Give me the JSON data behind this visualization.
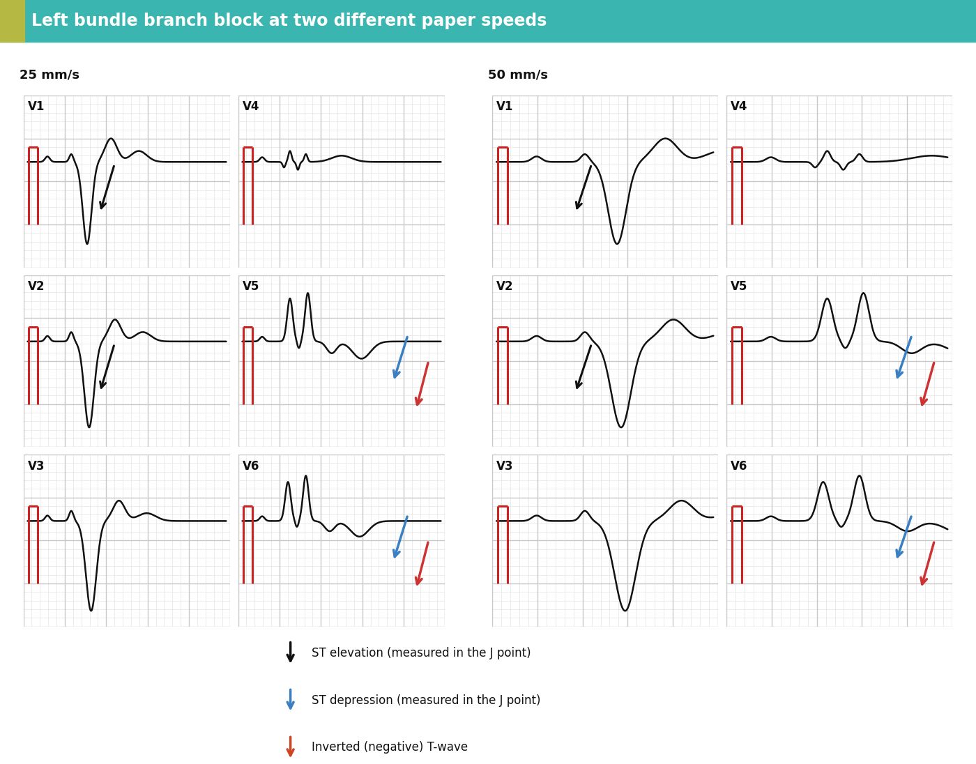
{
  "title": "Left bundle branch block at two different paper speeds",
  "title_bg": "#3ab5b0",
  "title_accent": "#b5b842",
  "title_text_color": "#ffffff",
  "bg_color": "#ffffff",
  "grid_major_color": "#c8c8c8",
  "grid_minor_color": "#e4e4e4",
  "ecg_color": "#111111",
  "red_cal_color": "#cc2222",
  "label_25": "25 mm/s",
  "label_50": "50 mm/s",
  "legend_items": [
    {
      "color": "#111111",
      "text": "ST elevation (measured in the J point)"
    },
    {
      "color": "#3a7fc1",
      "text": "ST depression (measured in the J point)"
    },
    {
      "color": "#cc4422",
      "text": "Inverted (negative) T-wave"
    }
  ],
  "arrow_black": "#111111",
  "arrow_blue": "#3a7fc1",
  "arrow_red": "#cc3333"
}
